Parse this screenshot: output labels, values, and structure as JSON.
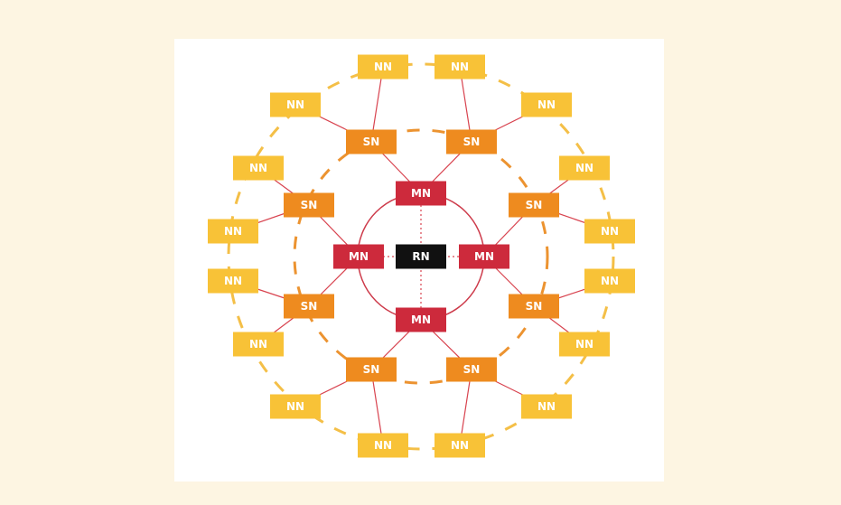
{
  "colors": {
    "background": "#fdf5e2",
    "panel": "#ffffff",
    "nn": "#f8c237",
    "sn": "#ee8b1f",
    "mn": "#cd2a3c",
    "rn": "#111111",
    "link": "#d8434f",
    "nn_ring": "#f4bf47",
    "sn_ring": "#ec9330",
    "mn_ring": "#cd3a4a",
    "label": "#ffffff"
  },
  "labels": {
    "rn": "RN",
    "mn": "MN",
    "sn": "SN",
    "nn": "NN"
  },
  "nodes": {
    "rn": [
      {
        "id": "rn"
      }
    ],
    "mn": [
      {
        "id": "mn-top"
      },
      {
        "id": "mn-left"
      },
      {
        "id": "mn-right"
      },
      {
        "id": "mn-bottom"
      }
    ],
    "sn": [
      {
        "id": "sn-top-left",
        "parent": "mn-top"
      },
      {
        "id": "sn-top-right",
        "parent": "mn-top"
      },
      {
        "id": "sn-left-upper",
        "parent": "mn-left"
      },
      {
        "id": "sn-left-lower",
        "parent": "mn-left"
      },
      {
        "id": "sn-right-upper",
        "parent": "mn-right"
      },
      {
        "id": "sn-right-lower",
        "parent": "mn-right"
      },
      {
        "id": "sn-bottom-left",
        "parent": "mn-bottom"
      },
      {
        "id": "sn-bottom-right",
        "parent": "mn-bottom"
      }
    ],
    "nn": [
      {
        "id": "nn-1",
        "parent": "sn-top-left"
      },
      {
        "id": "nn-2",
        "parent": "sn-top-left"
      },
      {
        "id": "nn-3",
        "parent": "sn-top-right"
      },
      {
        "id": "nn-4",
        "parent": "sn-top-right"
      },
      {
        "id": "nn-5",
        "parent": "sn-right-upper"
      },
      {
        "id": "nn-6",
        "parent": "sn-right-upper"
      },
      {
        "id": "nn-7",
        "parent": "sn-right-lower"
      },
      {
        "id": "nn-8",
        "parent": "sn-right-lower"
      },
      {
        "id": "nn-9",
        "parent": "sn-bottom-right"
      },
      {
        "id": "nn-10",
        "parent": "sn-bottom-right"
      },
      {
        "id": "nn-11",
        "parent": "sn-bottom-left"
      },
      {
        "id": "nn-12",
        "parent": "sn-bottom-left"
      },
      {
        "id": "nn-13",
        "parent": "sn-left-lower"
      },
      {
        "id": "nn-14",
        "parent": "sn-left-lower"
      },
      {
        "id": "nn-15",
        "parent": "sn-left-upper"
      },
      {
        "id": "nn-16",
        "parent": "sn-left-upper"
      }
    ]
  }
}
